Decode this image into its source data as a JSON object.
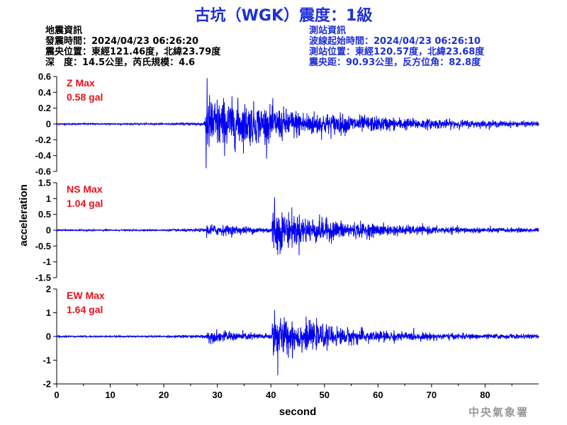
{
  "title": "古坑（WGK）震度：1級",
  "earthquake_info": {
    "heading": "地震資訊",
    "origin_time": "發震時間：2024/04/23 06:26:20",
    "epicenter": "震央位置：東經121.46度，北緯23.79度",
    "depth_magnitude": "深　度：14.5公里，芮氏規模：4.6"
  },
  "station_info": {
    "heading": "測站資訊",
    "wave_start": "波線起始時間：2024/04/23 06:26:10",
    "station_location": "測站位置：東經120.57度，北緯23.68度",
    "distance_azimuth": "震央距：90.93公里，反方位角：82.8度"
  },
  "footer": "中央氣象署",
  "colors": {
    "trace": "#0000ee",
    "title": "#1f2fd6",
    "max_label": "#e8101a"
  },
  "chart_data": {
    "type": "line",
    "xlabel": "second",
    "ylabel": "acceleration",
    "xlim": [
      0,
      90
    ],
    "xticks": [
      0,
      10,
      20,
      30,
      40,
      50,
      60,
      70,
      80
    ],
    "panels": [
      {
        "component": "Z",
        "max_label": "Z Max",
        "max_value": "0.58 gal",
        "ylim": [
          -0.6,
          0.6
        ],
        "yticks": [
          "0.6",
          "0.4",
          "0.2",
          "0",
          "-0.2",
          "-0.4",
          "-0.6"
        ],
        "peak": 0.58,
        "trough": -0.56,
        "noise": 0.008,
        "onset": 27.6,
        "main_arrival": 27.6,
        "envelope_peak": 0.32,
        "decay": 0.045
      },
      {
        "component": "NS",
        "max_label": "NS Max",
        "max_value": "1.04 gal",
        "ylim": [
          -1.5,
          1.5
        ],
        "yticks": [
          "1.5",
          "1",
          "0.5",
          "0",
          "-0.5",
          "-1",
          "-1.5"
        ],
        "peak": 1.04,
        "trough": -0.78,
        "noise": 0.02,
        "onset": 28.0,
        "main_arrival": 40.2,
        "envelope_peak": 0.55,
        "decay": 0.075
      },
      {
        "component": "EW",
        "max_label": "EW Max",
        "max_value": "1.64 gal",
        "ylim": [
          -2,
          2
        ],
        "yticks": [
          "2",
          "1",
          "0",
          "-1",
          "-2"
        ],
        "peak": 1.12,
        "trough": -1.64,
        "noise": 0.025,
        "onset": 28.0,
        "main_arrival": 40.2,
        "envelope_peak": 0.75,
        "decay": 0.08
      }
    ]
  }
}
